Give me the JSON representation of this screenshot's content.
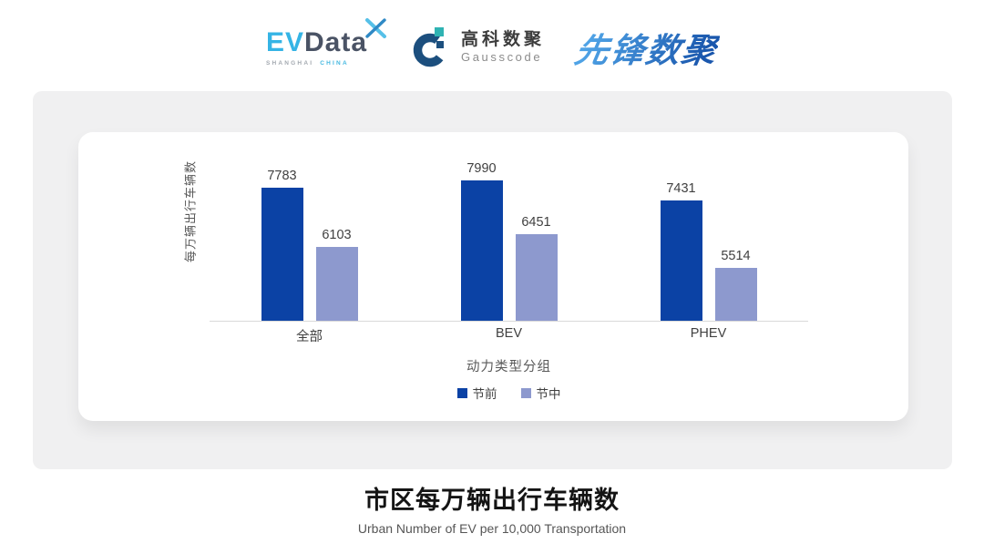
{
  "header": {
    "evdata": {
      "ev": "EV",
      "data": "Data",
      "sub_left": "SHANGHAI",
      "sub_right": "CHINA"
    },
    "gausscode": {
      "cn": "高科数聚",
      "en": "Gausscode"
    },
    "pioneer": {
      "text": "先锋数聚"
    }
  },
  "chart_data": {
    "type": "bar",
    "title": "市区每万辆出行车辆数",
    "categories": [
      "全部",
      "BEV",
      "PHEV"
    ],
    "series": [
      {
        "name": "节前",
        "color": "#0b42a5",
        "values": [
          7783,
          7990,
          7431
        ]
      },
      {
        "name": "节中",
        "color": "#8d99ce",
        "values": [
          6103,
          6451,
          5514
        ]
      }
    ],
    "xlabel": "动力类型分组",
    "ylabel": "每万辆出行车辆数",
    "ylim": [
      4000,
      8200
    ],
    "grid": false,
    "legend_position": "bottom",
    "value_labels": true
  },
  "footer": {
    "title": "市区每万辆出行车辆数",
    "subtitle": "Urban Number of EV per 10,000 Transportation"
  },
  "colors": {
    "series_pre": "#0b42a5",
    "series_mid": "#8d99ce",
    "panel_bg": "#f0f0f1",
    "card_bg": "#ffffff",
    "axis_line": "#d9d9d9",
    "evdata_blue": "#35b4e5",
    "evdata_slate": "#4a5365",
    "gauss_navy": "#1c4f7e",
    "gauss_teal": "#2fb3b3",
    "pioneer_blue": "#2b76c9"
  }
}
